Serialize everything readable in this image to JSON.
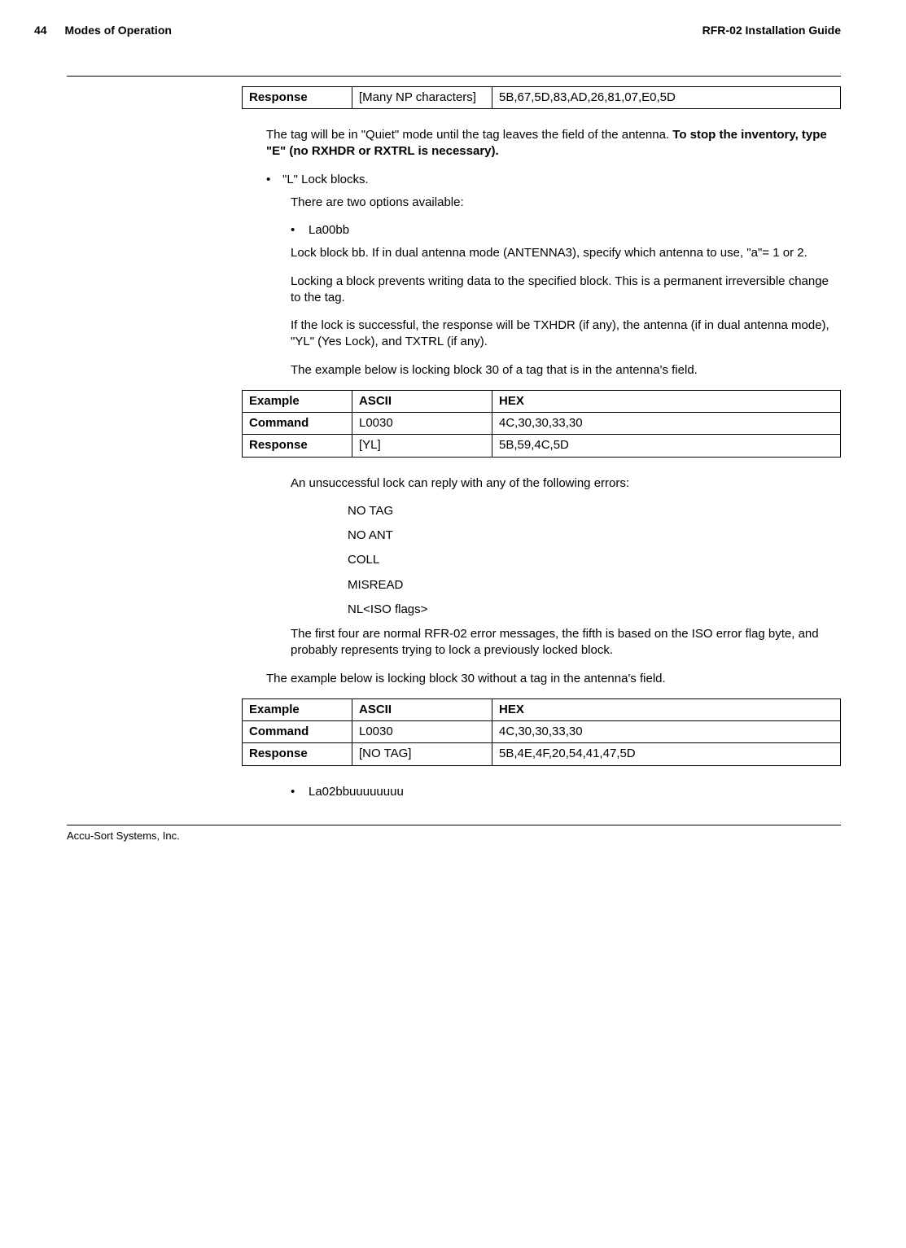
{
  "header": {
    "page_number": "44",
    "section": "Modes of Operation",
    "doc_title": "RFR-02 Installation Guide"
  },
  "table1": {
    "row_label": "Response",
    "ascii": "[Many NP characters]",
    "hex": "5B,67,5D,83,AD,26,81,07,E0,5D"
  },
  "p1a": "The tag will be in \"Quiet\" mode until the tag leaves the field of the antenna.  ",
  "p1b": "To stop the inventory, type \"E\" (no RXHDR or RXTRL is necessary).",
  "bullet_L": "\"L\" Lock blocks.",
  "p2": "There are two options available:",
  "bullet_La00bb": "La00bb",
  "p3": "Lock block bb.  If in dual antenna mode (ANTENNA3), specify which antenna to use, \"a\"= 1 or 2.",
  "p4": "Locking a block prevents writing data to the specified block.  This is a permanent irreversible change to the tag.",
  "p5": "If the lock is successful, the response will be TXHDR (if any), the antenna (if in dual antenna mode), \"YL\" (Yes Lock), and TXTRL (if any).",
  "p6": "The example below is locking block 30 of a tag that is in the antenna's field.",
  "table2": {
    "h1": "Example",
    "h2": "ASCII",
    "h3": "HEX",
    "r1_label": "Command",
    "r1_ascii": "L0030",
    "r1_hex": "4C,30,30,33,30",
    "r2_label": "Response",
    "r2_ascii": "[YL]",
    "r2_hex": "5B,59,4C,5D"
  },
  "p7": "An unsuccessful lock can reply with any of the following errors:",
  "errors": {
    "e1": "NO TAG",
    "e2": "NO ANT",
    "e3": "COLL",
    "e4": "MISREAD",
    "e5": "NL<ISO flags>"
  },
  "p8": "The first four are normal RFR-02 error messages, the fifth is based on the ISO error flag byte, and probably represents trying to lock a previously locked block.",
  "p9": "The example below is locking block 30 without a tag in the antenna's field.",
  "table3": {
    "h1": "Example",
    "h2": "ASCII",
    "h3": "HEX",
    "r1_label": "Command",
    "r1_ascii": "L0030",
    "r1_hex": "4C,30,30,33,30",
    "r2_label": "Response",
    "r2_ascii": "[NO TAG]",
    "r2_hex": "5B,4E,4F,20,54,41,47,5D"
  },
  "bullet_La02": "La02bbuuuuuuuu",
  "footer": "Accu-Sort Systems, Inc."
}
